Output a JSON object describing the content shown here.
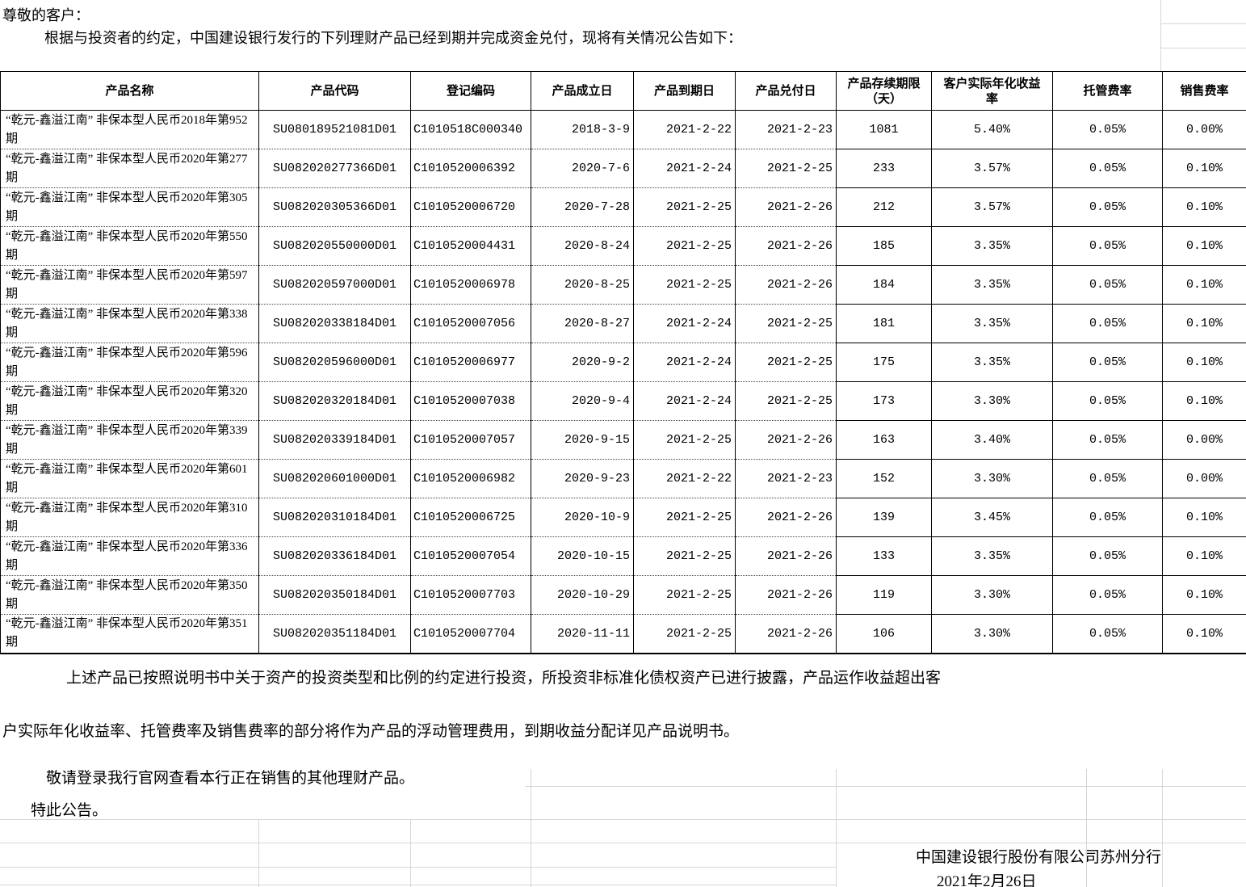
{
  "page": {
    "salutation": "尊敬的客户：",
    "intro": "根据与投资者的约定，中国建设银行发行的下列理财产品已经到期并完成资金兑付，现将有关情况公告如下："
  },
  "table": {
    "headers": [
      "产品名称",
      "产品代码",
      "登记编码",
      "产品成立日",
      "产品到期日",
      "产品兑付日",
      "产品存续期限（天）",
      "客户实际年化收益率",
      "托管费率",
      "销售费率"
    ],
    "rows": [
      [
        "“乾元-鑫溢江南” 非保本型人民币2018年第952期",
        "SU080189521081D01",
        "C1010518C000340",
        "2018-3-9",
        "2021-2-22",
        "2021-2-23",
        "1081",
        "5.40%",
        "0.05%",
        "0.00%"
      ],
      [
        "“乾元-鑫溢江南” 非保本型人民币2020年第277期",
        "SU082020277366D01",
        "C1010520006392",
        "2020-7-6",
        "2021-2-24",
        "2021-2-25",
        "233",
        "3.57%",
        "0.05%",
        "0.10%"
      ],
      [
        "“乾元-鑫溢江南” 非保本型人民币2020年第305期",
        "SU082020305366D01",
        "C1010520006720",
        "2020-7-28",
        "2021-2-25",
        "2021-2-26",
        "212",
        "3.57%",
        "0.05%",
        "0.10%"
      ],
      [
        "“乾元-鑫溢江南” 非保本型人民币2020年第550期",
        "SU082020550000D01",
        "C1010520004431",
        "2020-8-24",
        "2021-2-25",
        "2021-2-26",
        "185",
        "3.35%",
        "0.05%",
        "0.10%"
      ],
      [
        "“乾元-鑫溢江南” 非保本型人民币2020年第597期",
        "SU082020597000D01",
        "C1010520006978",
        "2020-8-25",
        "2021-2-25",
        "2021-2-26",
        "184",
        "3.35%",
        "0.05%",
        "0.10%"
      ],
      [
        "“乾元-鑫溢江南” 非保本型人民币2020年第338期",
        "SU082020338184D01",
        "C1010520007056",
        "2020-8-27",
        "2021-2-24",
        "2021-2-25",
        "181",
        "3.35%",
        "0.05%",
        "0.10%"
      ],
      [
        "“乾元-鑫溢江南” 非保本型人民币2020年第596期",
        "SU082020596000D01",
        "C1010520006977",
        "2020-9-2",
        "2021-2-24",
        "2021-2-25",
        "175",
        "3.35%",
        "0.05%",
        "0.10%"
      ],
      [
        "“乾元-鑫溢江南” 非保本型人民币2020年第320期",
        "SU082020320184D01",
        "C1010520007038",
        "2020-9-4",
        "2021-2-24",
        "2021-2-25",
        "173",
        "3.30%",
        "0.05%",
        "0.10%"
      ],
      [
        "“乾元-鑫溢江南” 非保本型人民币2020年第339期",
        "SU082020339184D01",
        "C1010520007057",
        "2020-9-15",
        "2021-2-25",
        "2021-2-26",
        "163",
        "3.40%",
        "0.05%",
        "0.00%"
      ],
      [
        "“乾元-鑫溢江南” 非保本型人民币2020年第601期",
        "SU082020601000D01",
        "C1010520006982",
        "2020-9-23",
        "2021-2-22",
        "2021-2-23",
        "152",
        "3.30%",
        "0.05%",
        "0.00%"
      ],
      [
        "“乾元-鑫溢江南” 非保本型人民币2020年第310期",
        "SU082020310184D01",
        "C1010520006725",
        "2020-10-9",
        "2021-2-25",
        "2021-2-26",
        "139",
        "3.45%",
        "0.05%",
        "0.10%"
      ],
      [
        "“乾元-鑫溢江南” 非保本型人民币2020年第336期",
        "SU082020336184D01",
        "C1010520007054",
        "2020-10-15",
        "2021-2-25",
        "2021-2-26",
        "133",
        "3.35%",
        "0.05%",
        "0.10%"
      ],
      [
        "“乾元-鑫溢江南” 非保本型人民币2020年第350期",
        "SU082020350184D01",
        "C1010520007703",
        "2020-10-29",
        "2021-2-25",
        "2021-2-26",
        "119",
        "3.30%",
        "0.05%",
        "0.10%"
      ],
      [
        "“乾元-鑫溢江南” 非保本型人民币2020年第351期",
        "SU082020351184D01",
        "C1010520007704",
        "2020-11-11",
        "2021-2-25",
        "2021-2-26",
        "106",
        "3.30%",
        "0.05%",
        "0.10%"
      ]
    ]
  },
  "footer": {
    "para_line1": "上述产品已按照说明书中关于资产的投资类型和比例的约定进行投资，所投资非标准化债权资产已进行披露，产品运作收益超出客",
    "para_line2": "户实际年化收益率、托管费率及销售费率的部分将作为产品的浮动管理费用，到期收益分配详见产品说明书。",
    "note": "敬请登录我行官网查看本行正在销售的其他理财产品。",
    "closing": "特此公告。",
    "signer": "中国建设银行股份有限公司苏州分行",
    "date": "2021年2月26日"
  },
  "colors": {
    "text": "#000000",
    "background": "#ffffff",
    "table_border": "#000000",
    "gridline": "#d6d6d6"
  }
}
